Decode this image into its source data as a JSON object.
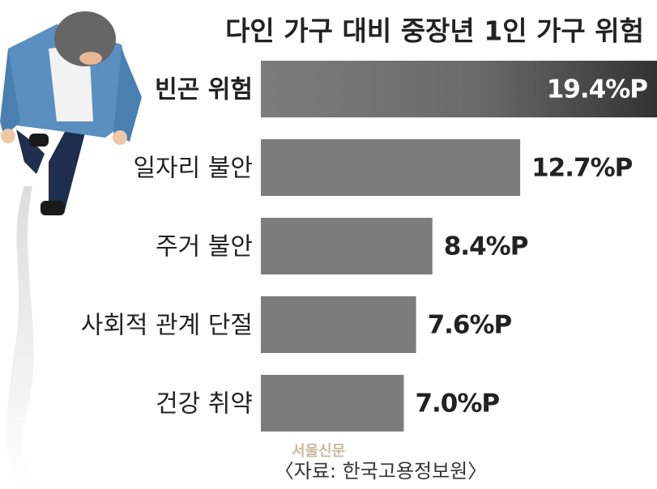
{
  "chart_data": {
    "type": "bar",
    "orientation": "horizontal",
    "title": "다인 가구 대비 중장년 1인 가구 위험",
    "categories": [
      "빈곤 위험",
      "일자리 불안",
      "주거 불안",
      "사회적 관계 단절",
      "건강 취약"
    ],
    "values": [
      19.4,
      12.7,
      8.4,
      7.6,
      7.0
    ],
    "value_labels": [
      "19.4%P",
      "12.7%P",
      "8.4%P",
      "7.6%P",
      "7.0%P"
    ],
    "color": "#7c7c7c",
    "source": "〈자료: 한국고용정보원〉",
    "watermark": "서울신문"
  }
}
